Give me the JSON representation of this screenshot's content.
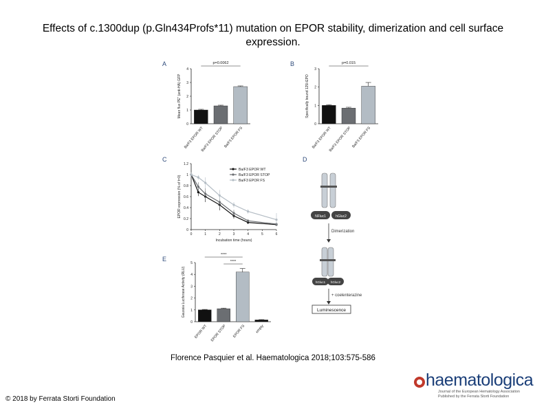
{
  "title": "Effects of c.1300dup (p.Gln434Profs*11) mutation on EPOR stability, dimerization and cell surface expression.",
  "citation": "Florence Pasquier et al. Haematologica 2018;103:575-586",
  "copyright": "© 2018 by Ferrata Storti Foundation",
  "logo": {
    "name": "haematologica",
    "tagline_1": "Journal of the European Hematology Association",
    "tagline_2": "Published by the Ferrata Storti Foundation"
  },
  "panel_labels": [
    "A",
    "B",
    "C",
    "D",
    "E"
  ],
  "panel_d": {
    "chain_left": "NFluc1",
    "chain_right": "hGluc2",
    "dimerization": "Dimerization",
    "fused_left": "hGluc1",
    "fused_right": "hGluc2",
    "step": "+ coelenterazine",
    "readout": "Luminescence"
  },
  "chart_data": [
    {
      "type": "bar",
      "panel": "A",
      "ylabel": "Mean flux PE\" (anti-HA) GFP",
      "categories": [
        "Ba/F3 EPOR WT",
        "Ba/F3 EPOR STOP",
        "Ba/F3 EPOR FS"
      ],
      "values": [
        1.0,
        1.3,
        2.7
      ],
      "errors": [
        0.05,
        0.05,
        0.05
      ],
      "colors": [
        "#111111",
        "#6b6e72",
        "#b3bcc4"
      ],
      "ylim": [
        0,
        4
      ],
      "yticks": [
        0,
        1,
        2,
        3,
        4
      ],
      "annotation": "p=0.0062"
    },
    {
      "type": "bar",
      "panel": "B",
      "ylabel": "Specifically bound 125I-EPO",
      "categories": [
        "Ba/F3 EPOR WT",
        "Ba/F3 EPOR STOP",
        "Ba/F3 EPOR FS"
      ],
      "values": [
        1.0,
        0.85,
        2.05
      ],
      "errors": [
        0.04,
        0.05,
        0.2
      ],
      "colors": [
        "#111111",
        "#6b6e72",
        "#b3bcc4"
      ],
      "ylim": [
        0,
        3
      ],
      "yticks": [
        0,
        1,
        2,
        3
      ],
      "annotation": "p=0.015"
    },
    {
      "type": "line",
      "panel": "C",
      "xlabel": "Incubation time (hours)",
      "ylabel": "EPOR expression (% of t=0)",
      "xlim": [
        0,
        6
      ],
      "ylim": [
        0,
        1.2
      ],
      "xticks": [
        0,
        1,
        2,
        3,
        4,
        5,
        6
      ],
      "yticks": [
        0.0,
        0.2,
        0.4,
        0.6,
        0.8,
        1.0,
        1.2
      ],
      "x": [
        0,
        0.5,
        1,
        2,
        3,
        4,
        6
      ],
      "series": [
        {
          "name": "Ba/F3 EPOR WT",
          "color": "#111111",
          "values": [
            1.0,
            0.68,
            0.6,
            0.45,
            0.25,
            0.13,
            0.09
          ],
          "errors": [
            0.05,
            0.07,
            0.1,
            0.1,
            0.05,
            0.03,
            0.02
          ]
        },
        {
          "name": "Ba/F3 EPOR STOP",
          "color": "#6b6e72",
          "values": [
            1.0,
            0.78,
            0.65,
            0.5,
            0.3,
            0.16,
            0.1
          ],
          "errors": [
            0.05,
            0.08,
            0.1,
            0.1,
            0.06,
            0.03,
            0.02
          ]
        },
        {
          "name": "Ba/F3 EPOR FS",
          "color": "#b3bcc4",
          "values": [
            1.0,
            0.95,
            0.85,
            0.62,
            0.45,
            0.33,
            0.18
          ],
          "errors": [
            0.04,
            0.04,
            0.1,
            0.1,
            0.05,
            0.04,
            0.12
          ]
        }
      ]
    },
    {
      "type": "bar",
      "panel": "E",
      "ylabel": "Gaussia Luciferase Activity (RLU)",
      "categories": [
        "EPOR WT",
        "EPOR STOP",
        "EPOR FS",
        "empty"
      ],
      "values": [
        1.0,
        1.1,
        4.2,
        0.15
      ],
      "errors": [
        0.04,
        0.05,
        0.3,
        0.03
      ],
      "colors": [
        "#111111",
        "#6b6e72",
        "#b3bcc4",
        "#111111"
      ],
      "ylim": [
        0,
        5
      ],
      "yticks": [
        0,
        1,
        2,
        3,
        4,
        5
      ],
      "annotations": [
        "****",
        "****"
      ]
    }
  ]
}
